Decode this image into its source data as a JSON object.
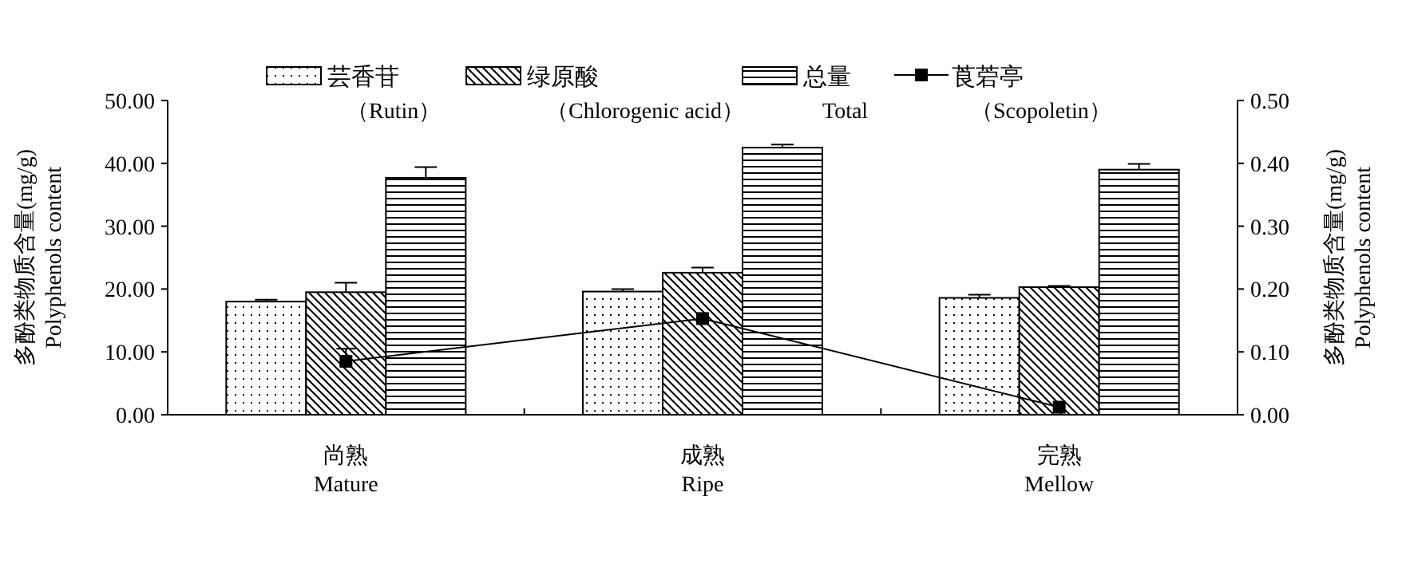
{
  "chart_data": {
    "type": "bar",
    "categories": [
      "尚熟\nMature",
      "成熟\nRipe",
      "完熟\nMellow"
    ],
    "ylabel": "多酚类物质含量(mg/g)\nPolyphenols content",
    "y2label": "多酚类物质含量(mg/g)\nPolyphenols content",
    "ylim": [
      0,
      50
    ],
    "yticks": [
      {
        "value": 0,
        "label": "0.00"
      },
      {
        "value": 10,
        "label": "10.00"
      },
      {
        "value": 20,
        "label": "20.00"
      },
      {
        "value": 30,
        "label": "30.00"
      },
      {
        "value": 40,
        "label": "40.00"
      },
      {
        "value": 50,
        "label": "50.00"
      }
    ],
    "y2lim": [
      0,
      0.5
    ],
    "y2ticks": [
      {
        "value": 0,
        "label": "0.00"
      },
      {
        "value": 0.1,
        "label": "0.10"
      },
      {
        "value": 0.2,
        "label": "0.20"
      },
      {
        "value": 0.3,
        "label": "0.30"
      },
      {
        "value": 0.4,
        "label": "0.40"
      },
      {
        "value": 0.5,
        "label": "0.50"
      }
    ],
    "series": [
      {
        "name": "芸香苷（Rutin）",
        "color": "#000000",
        "values": [
          18.0,
          19.6,
          18.6
        ],
        "errors": [
          0.3,
          0.4,
          0.5
        ]
      },
      {
        "name": "绿原酸（Chlorogenic acid）",
        "color": "#000000",
        "values": [
          19.5,
          22.6,
          20.3
        ],
        "errors": [
          1.5,
          0.8,
          0.2
        ]
      },
      {
        "name": "总量\nTotal",
        "color": "#000000",
        "values": [
          37.7,
          42.5,
          39.0
        ],
        "errors": [
          1.7,
          0.5,
          0.9
        ]
      },
      {
        "name": "莨菪亭（Scopoletin）",
        "type": "line",
        "axis": "y2",
        "color": "#000000",
        "values": [
          0.085,
          0.153,
          0.012
        ],
        "errors": [
          0.02,
          null,
          null
        ]
      }
    ],
    "legend": "top",
    "marker": "square",
    "line_style": "solid"
  }
}
